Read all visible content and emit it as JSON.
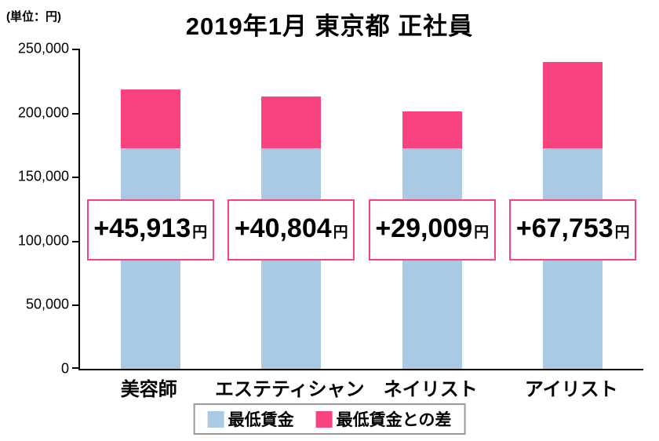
{
  "meta": {
    "title": "2019年1月 東京都 正社員",
    "unit_label": "(単位：円)"
  },
  "colors": {
    "min_wage_blue": "#a9c9e5",
    "difference_pink": "#f8437e",
    "label_box_border": "#f8437e",
    "legend_border": "#9a9a9a",
    "axis": "#000000"
  },
  "chart_data": {
    "type": "bar",
    "stacked": true,
    "title": "2019年1月 東京都 正社員",
    "unit": "(単位：円)",
    "categories": [
      "美容師",
      "エステティシャン",
      "ネイリスト",
      "アイリスト"
    ],
    "series": [
      {
        "name": "最低賃金",
        "color": "#a9c9e5",
        "values": [
          172000,
          172000,
          172000,
          172000
        ],
        "note": "base values estimated from gridlines"
      },
      {
        "name": "最低賃金との差",
        "color": "#f8437e",
        "values": [
          45913,
          40804,
          29009,
          67753
        ]
      }
    ],
    "bar_totals_estimated": [
      217913,
      212804,
      201009,
      239753
    ],
    "bar_labels": [
      "+45,913",
      "+40,804",
      "+29,009",
      "+67,753"
    ],
    "bar_label_suffix": "円",
    "ylim": [
      0,
      250000
    ],
    "ytick_step": 50000,
    "yticks": [
      "250,000",
      "200,000",
      "150,000",
      "100,000",
      "50,000",
      "0"
    ],
    "grid": false,
    "legend_position": "bottom"
  }
}
